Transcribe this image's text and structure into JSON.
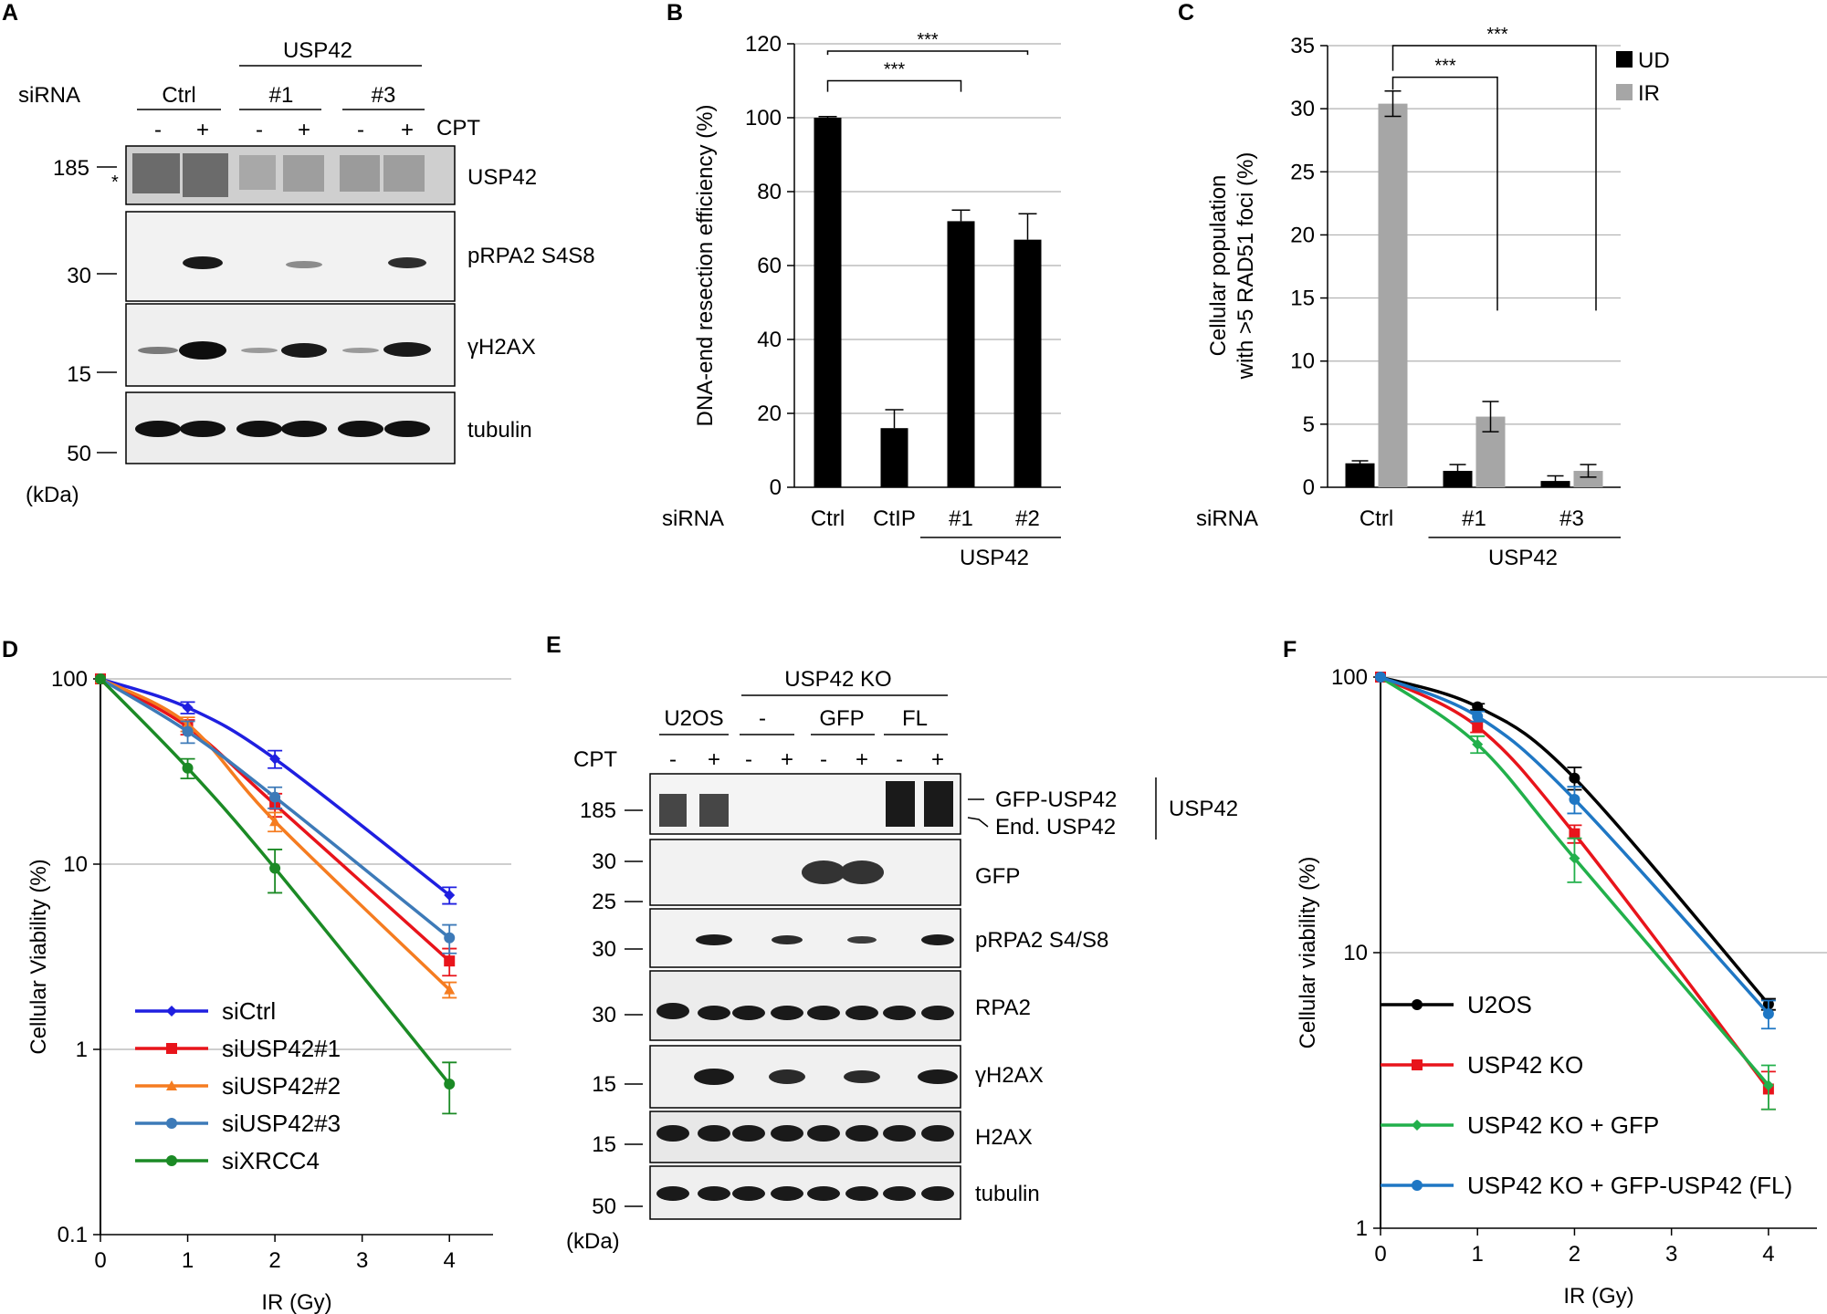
{
  "panelA": {
    "letter": "A",
    "sirna_label": "siRNA",
    "group_label": "USP42",
    "groups": [
      "Ctrl",
      "#1",
      "#3"
    ],
    "treatment_label": "CPT",
    "lane_marks": [
      "-",
      "+",
      "-",
      "+",
      "-",
      "+"
    ],
    "blots": [
      "USP42",
      "pRPA2 S4S8",
      "γH2AX",
      "tubulin"
    ],
    "mw_markers": [
      "185",
      "30",
      "15",
      "50"
    ],
    "nonspecific_mark": "*",
    "unit": "(kDa)"
  },
  "panelE": {
    "letter": "E",
    "group_label": "USP42 KO",
    "groups": [
      "U2OS",
      "-",
      "GFP",
      "FL"
    ],
    "treatment_label": "CPT",
    "lane_marks": [
      "-",
      "+",
      "-",
      "+",
      "-",
      "+",
      "-",
      "+"
    ],
    "blots": [
      "",
      "GFP",
      "pRPA2 S4/S8",
      "RPA2",
      "γH2AX",
      "H2AX",
      "tubulin"
    ],
    "mw_markers": [
      "185",
      "30",
      "25",
      "30",
      "30",
      "15",
      "15",
      "50"
    ],
    "band_labels": [
      "GFP-USP42",
      "End. USP42"
    ],
    "band_group_label": "USP42",
    "unit": "(kDa)"
  },
  "chart_data": [
    {
      "panel": "B",
      "type": "bar",
      "ylabel": "DNA-end resection efficiency (%)",
      "xlabel": "siRNA",
      "categories": [
        "Ctrl",
        "CtIP",
        "#1",
        "#2"
      ],
      "group_label": "USP42",
      "values": [
        100,
        16,
        72,
        67
      ],
      "errors": [
        0.3,
        5,
        3,
        7
      ],
      "ylim": [
        0,
        120
      ],
      "yticks": [
        "0",
        "20",
        "40",
        "60",
        "80",
        "100",
        "120"
      ],
      "significance": [
        "***",
        "***"
      ],
      "grid": true
    },
    {
      "panel": "C",
      "type": "bar",
      "ylabel": "Cellular population with >5 RAD51 foci (%)",
      "xlabel": "siRNA",
      "categories": [
        "Ctrl",
        "#1",
        "#3"
      ],
      "group_label": "USP42",
      "series": [
        {
          "name": "UD",
          "color": "#000000",
          "values": [
            1.9,
            1.3,
            0.5
          ],
          "errors": [
            0.2,
            0.5,
            0.4
          ]
        },
        {
          "name": "IR",
          "color": "#a6a6a6",
          "values": [
            30.4,
            5.6,
            1.3
          ],
          "errors": [
            1.0,
            1.2,
            0.5
          ]
        }
      ],
      "ylim": [
        0,
        35
      ],
      "yticks": [
        "0",
        "5",
        "10",
        "15",
        "20",
        "25",
        "30",
        "35"
      ],
      "significance": [
        "***",
        "***"
      ],
      "legend": "top-right",
      "grid": true
    },
    {
      "panel": "D",
      "type": "line",
      "yscale": "log",
      "ylabel": "Cellular Viability (%)",
      "xlabel": "IR (Gy)",
      "x": [
        0,
        1,
        2,
        4
      ],
      "xticks": [
        "0",
        "1",
        "2",
        "3",
        "4"
      ],
      "yticks": [
        "0.1",
        "1",
        "10",
        "100"
      ],
      "xlim": [
        0,
        4.5
      ],
      "ylim": [
        0.1,
        100
      ],
      "series": [
        {
          "name": "siCtrl",
          "color": "#1f1fe0",
          "marker": "diamond",
          "values": [
            100,
            70,
            37,
            6.8
          ],
          "errors": [
            0,
            5,
            4,
            0.7
          ]
        },
        {
          "name": "siUSP42#1",
          "color": "#e8141b",
          "marker": "square",
          "values": [
            100,
            55,
            21,
            3.0
          ],
          "errors": [
            0,
            5,
            3,
            0.5
          ]
        },
        {
          "name": "siUSP42#2",
          "color": "#f57c20",
          "marker": "triangle",
          "values": [
            100,
            57,
            17,
            2.1
          ],
          "errors": [
            0,
            5,
            2,
            0.2
          ]
        },
        {
          "name": "siUSP42#3",
          "color": "#3d7ab8",
          "marker": "circle",
          "values": [
            100,
            52,
            23,
            4.0
          ],
          "errors": [
            0,
            7,
            3,
            0.7
          ]
        },
        {
          "name": "siXRCC4",
          "color": "#1b8a25",
          "marker": "circle",
          "values": [
            100,
            33,
            9.5,
            0.65
          ],
          "errors": [
            0,
            4,
            2.5,
            0.2
          ]
        }
      ],
      "legend": "bottom-left",
      "grid": true
    },
    {
      "panel": "F",
      "type": "line",
      "yscale": "log",
      "ylabel": "Cellular viability (%)",
      "xlabel": "IR (Gy)",
      "x": [
        0,
        1,
        2,
        4
      ],
      "xticks": [
        "0",
        "1",
        "2",
        "3",
        "4"
      ],
      "yticks": [
        "1",
        "10",
        "100"
      ],
      "xlim": [
        0,
        4.5
      ],
      "ylim": [
        1,
        100
      ],
      "series": [
        {
          "name": "U2OS",
          "color": "#000000",
          "marker": "circle",
          "values": [
            100,
            78,
            43,
            6.5
          ],
          "errors": [
            0,
            2,
            4,
            0.3
          ]
        },
        {
          "name": "USP42 KO",
          "color": "#e8141b",
          "marker": "square",
          "values": [
            100,
            66,
            27,
            3.2
          ],
          "errors": [
            0,
            3,
            2,
            0.5
          ]
        },
        {
          "name": "USP42 KO + GFP",
          "color": "#22b04b",
          "marker": "diamond",
          "values": [
            100,
            57,
            22,
            3.3
          ],
          "errors": [
            0,
            4,
            4,
            0.6
          ]
        },
        {
          "name": "USP42 KO + GFP-USP42 (FL)",
          "color": "#1f77c4",
          "marker": "circle",
          "values": [
            100,
            72,
            36,
            6.0
          ],
          "errors": [
            0,
            3,
            4,
            0.7
          ]
        }
      ],
      "legend": "bottom-left",
      "grid": true
    }
  ]
}
